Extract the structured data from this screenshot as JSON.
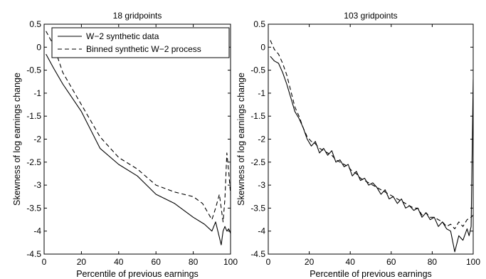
{
  "chart_data": [
    {
      "type": "line",
      "title": "18 gridpoints",
      "xlabel": "Percentile of previous earnings",
      "ylabel": "Skewness of log earnings change",
      "xlim": [
        0,
        100
      ],
      "ylim": [
        -4.5,
        0.5
      ],
      "xticks": [
        "0",
        "20",
        "40",
        "60",
        "80",
        "100"
      ],
      "yticks": [
        "0.5",
        "0",
        "-0.5",
        "-1",
        "-1.5",
        "-2",
        "-2.5",
        "-3",
        "-3.5",
        "-4",
        "-4.5"
      ],
      "legend_position": "top",
      "series": [
        {
          "name": "W−2 synthetic data",
          "style": "solid",
          "x": [
            1,
            5,
            10,
            20,
            30,
            40,
            50,
            60,
            70,
            80,
            86,
            90,
            92,
            95,
            96,
            97,
            98,
            99,
            100
          ],
          "y": [
            -0.15,
            -0.45,
            -0.8,
            -1.4,
            -2.2,
            -2.55,
            -2.8,
            -3.2,
            -3.4,
            -3.7,
            -3.85,
            -4.0,
            -3.8,
            -4.3,
            -4.0,
            -3.9,
            -4.0,
            -3.95,
            -4.05
          ]
        },
        {
          "name": "Binned synthetic W−2 process",
          "style": "dashed",
          "x": [
            1,
            5,
            10,
            20,
            30,
            40,
            50,
            60,
            70,
            80,
            85,
            90,
            92,
            94,
            96,
            97,
            98,
            99,
            100
          ],
          "y": [
            0.35,
            0.05,
            -0.55,
            -1.25,
            -1.95,
            -2.4,
            -2.65,
            -3.0,
            -3.15,
            -3.25,
            -3.4,
            -3.75,
            -3.5,
            -3.2,
            -3.8,
            -3.3,
            -2.3,
            -2.7,
            -3.2
          ]
        }
      ]
    },
    {
      "type": "line",
      "title": "103 gridpoints",
      "xlabel": "Percentile of previous earnings",
      "ylabel": "Skewness of log earnings change",
      "xlim": [
        0,
        100
      ],
      "ylim": [
        -4.5,
        0.5
      ],
      "xticks": [
        "0",
        "20",
        "40",
        "60",
        "80",
        "100"
      ],
      "yticks": [
        "0.5",
        "0",
        "-0.5",
        "-1",
        "-1.5",
        "-2",
        "-2.5",
        "-3",
        "-3.5",
        "-4",
        "-4.5"
      ],
      "series": [
        {
          "style": "solid",
          "x": [
            1,
            3,
            5,
            7,
            9,
            11,
            13,
            15,
            17,
            19,
            21,
            23,
            25,
            27,
            29,
            31,
            33,
            35,
            37,
            39,
            41,
            43,
            45,
            47,
            49,
            51,
            53,
            55,
            57,
            59,
            61,
            63,
            65,
            67,
            69,
            71,
            73,
            75,
            77,
            79,
            81,
            83,
            85,
            87,
            89,
            91,
            93,
            95,
            97,
            98,
            99,
            100
          ],
          "y": [
            -0.2,
            -0.3,
            -0.35,
            -0.55,
            -0.8,
            -1.1,
            -1.4,
            -1.55,
            -1.75,
            -2.0,
            -2.15,
            -2.05,
            -2.3,
            -2.2,
            -2.35,
            -2.25,
            -2.5,
            -2.45,
            -2.6,
            -2.55,
            -2.8,
            -2.7,
            -2.9,
            -2.85,
            -3.0,
            -2.95,
            -3.05,
            -3.2,
            -3.1,
            -3.3,
            -3.25,
            -3.4,
            -3.3,
            -3.5,
            -3.45,
            -3.55,
            -3.5,
            -3.7,
            -3.6,
            -3.75,
            -3.7,
            -3.9,
            -3.8,
            -3.95,
            -4.0,
            -4.45,
            -4.1,
            -4.2,
            -3.95,
            -4.1,
            -3.9,
            -0.7
          ]
        },
        {
          "style": "dashed",
          "x": [
            1,
            3,
            5,
            7,
            9,
            11,
            13,
            15,
            17,
            19,
            21,
            23,
            25,
            27,
            29,
            31,
            33,
            35,
            37,
            39,
            41,
            43,
            45,
            47,
            49,
            51,
            53,
            55,
            57,
            59,
            61,
            63,
            65,
            67,
            69,
            71,
            73,
            75,
            77,
            79,
            81,
            83,
            85,
            87,
            89,
            91,
            93,
            95,
            97,
            99,
            100
          ],
          "y": [
            0.15,
            -0.05,
            -0.15,
            -0.35,
            -0.6,
            -0.95,
            -1.3,
            -1.5,
            -1.75,
            -1.95,
            -2.05,
            -2.1,
            -2.2,
            -2.25,
            -2.3,
            -2.35,
            -2.45,
            -2.5,
            -2.55,
            -2.6,
            -2.7,
            -2.75,
            -2.85,
            -2.9,
            -2.95,
            -3.0,
            -3.05,
            -3.1,
            -3.15,
            -3.2,
            -3.25,
            -3.3,
            -3.35,
            -3.4,
            -3.45,
            -3.5,
            -3.5,
            -3.65,
            -3.6,
            -3.7,
            -3.7,
            -3.75,
            -3.8,
            -3.9,
            -3.85,
            -3.95,
            -3.8,
            -3.9,
            -3.75,
            -3.7,
            -3.65
          ]
        }
      ]
    }
  ]
}
